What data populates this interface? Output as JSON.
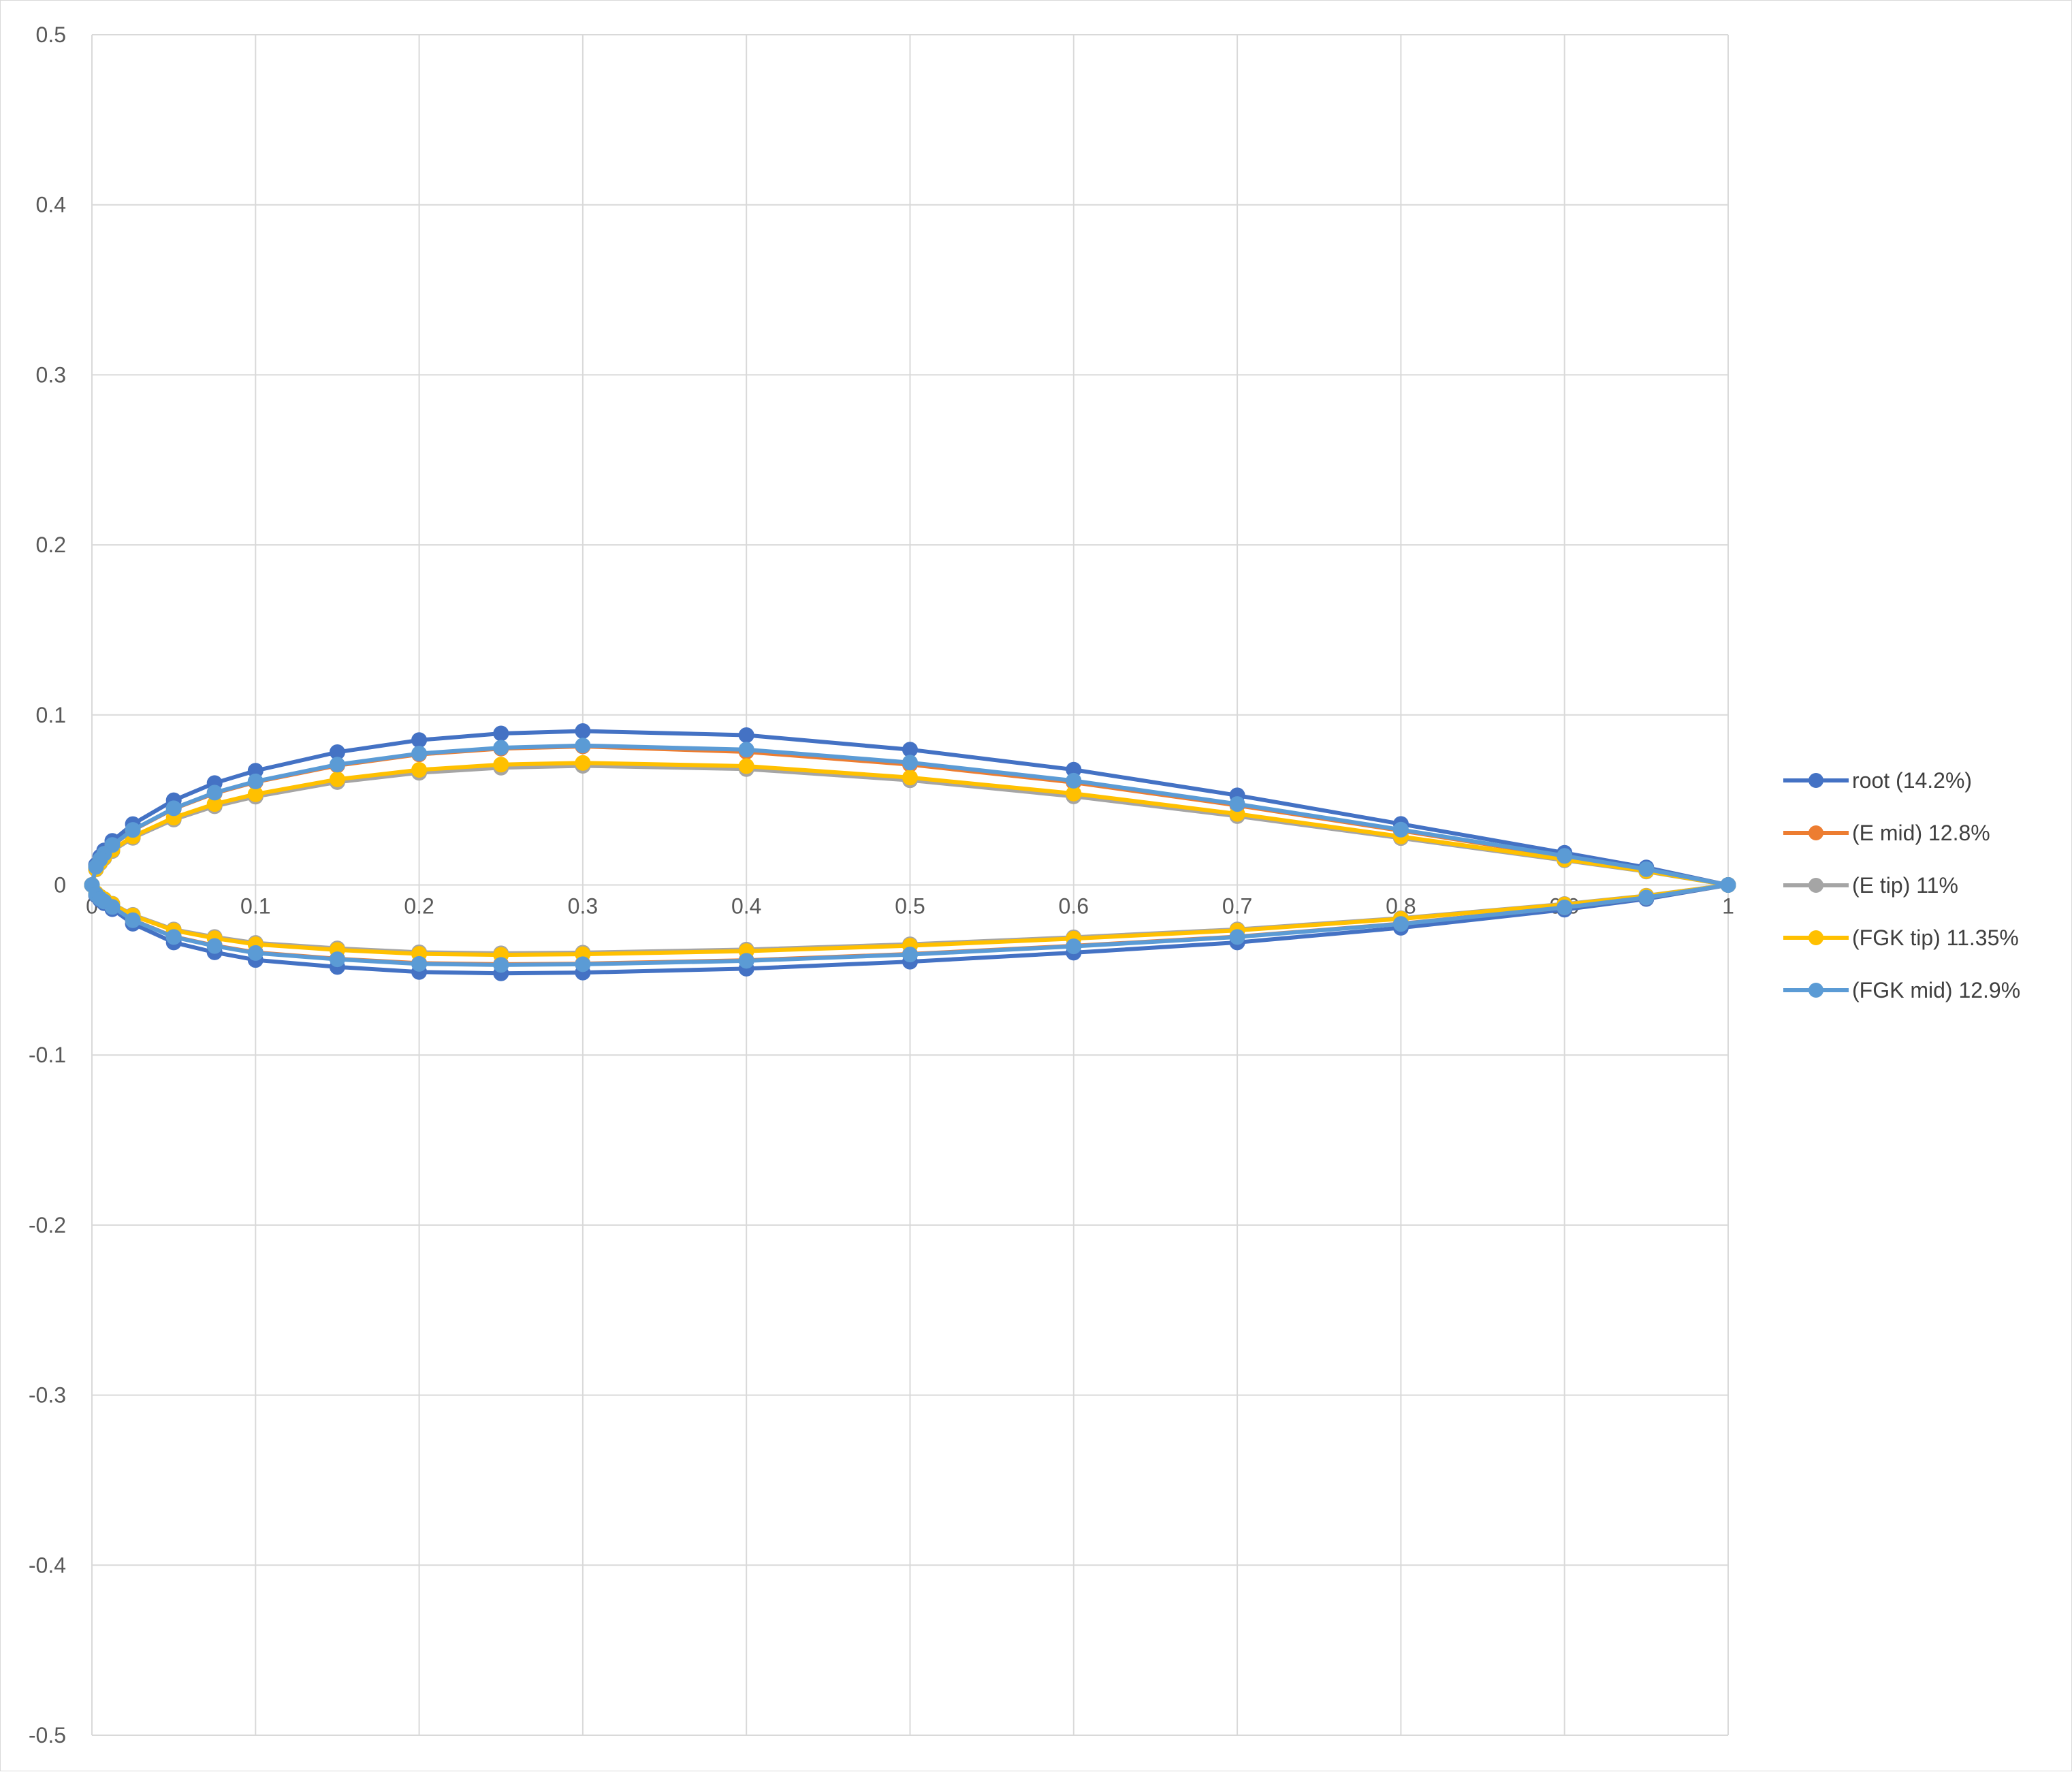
{
  "chart_data": {
    "type": "scatter",
    "title": "",
    "xlabel": "",
    "ylabel": "",
    "xlim": [
      0,
      1
    ],
    "ylim": [
      -0.5,
      0.5
    ],
    "x_ticks": [
      "0",
      "0.1",
      "0.2",
      "0.3",
      "0.4",
      "0.5",
      "0.6",
      "0.7",
      "0.8",
      "0.9",
      "1"
    ],
    "y_ticks": [
      "0.5",
      "0.4",
      "0.3",
      "0.2",
      "0.1",
      "0",
      "-0.1",
      "-0.2",
      "-0.3",
      "-0.4",
      "-0.5"
    ],
    "grid": true,
    "legend_position": "right",
    "series": [
      {
        "name": "root (14.2%)",
        "color": "#4472C4",
        "points": [
          [
            1,
            0
          ],
          [
            0.95,
            0.0103
          ],
          [
            0.9,
            0.0189
          ],
          [
            0.8,
            0.0359
          ],
          [
            0.7,
            0.0527
          ],
          [
            0.6,
            0.0678
          ],
          [
            0.5,
            0.0796
          ],
          [
            0.4,
            0.0881
          ],
          [
            0.3,
            0.0905
          ],
          [
            0.25,
            0.0891
          ],
          [
            0.2,
            0.0852
          ],
          [
            0.15,
            0.0781
          ],
          [
            0.1,
            0.0672
          ],
          [
            0.075,
            0.0599
          ],
          [
            0.05,
            0.0498
          ],
          [
            0.025,
            0.0358
          ],
          [
            0.0125,
            0.0259
          ],
          [
            0.0075,
            0.0203
          ],
          [
            0.005,
            0.0166
          ],
          [
            0.0025,
            0.0118
          ],
          [
            0,
            0
          ],
          [
            0.0025,
            -0.0061
          ],
          [
            0.005,
            -0.0088
          ],
          [
            0.0075,
            -0.0107
          ],
          [
            0.0125,
            -0.0142
          ],
          [
            0.025,
            -0.0228
          ],
          [
            0.05,
            -0.0338
          ],
          [
            0.075,
            -0.0396
          ],
          [
            0.1,
            -0.0441
          ],
          [
            0.15,
            -0.0482
          ],
          [
            0.2,
            -0.0512
          ],
          [
            0.25,
            -0.052
          ],
          [
            0.3,
            -0.0515
          ],
          [
            0.4,
            -0.0492
          ],
          [
            0.5,
            -0.0451
          ],
          [
            0.6,
            -0.0398
          ],
          [
            0.7,
            -0.0338
          ],
          [
            0.8,
            -0.0252
          ],
          [
            0.9,
            -0.0145
          ],
          [
            0.95,
            -0.0082
          ],
          [
            1,
            0
          ]
        ]
      },
      {
        "name": "(E mid) 12.8%",
        "color": "#ED7D31",
        "points": [
          [
            1,
            0
          ],
          [
            0.95,
            0.0092
          ],
          [
            0.9,
            0.0168
          ],
          [
            0.8,
            0.0319
          ],
          [
            0.7,
            0.0468
          ],
          [
            0.6,
            0.0603
          ],
          [
            0.5,
            0.0708
          ],
          [
            0.4,
            0.0783
          ],
          [
            0.3,
            0.0815
          ],
          [
            0.25,
            0.0802
          ],
          [
            0.2,
            0.0768
          ],
          [
            0.15,
            0.0703
          ],
          [
            0.1,
            0.0605
          ],
          [
            0.075,
            0.0539
          ],
          [
            0.05,
            0.0448
          ],
          [
            0.025,
            0.0322
          ],
          [
            0.0125,
            0.0233
          ],
          [
            0.0075,
            0.0183
          ],
          [
            0.005,
            0.0149
          ],
          [
            0.0025,
            0.0106
          ],
          [
            0,
            0
          ],
          [
            0.0025,
            -0.0055
          ],
          [
            0.005,
            -0.0079
          ],
          [
            0.0075,
            -0.0096
          ],
          [
            0.0125,
            -0.0128
          ],
          [
            0.025,
            -0.0206
          ],
          [
            0.05,
            -0.0304
          ],
          [
            0.075,
            -0.0356
          ],
          [
            0.1,
            -0.0397
          ],
          [
            0.15,
            -0.0434
          ],
          [
            0.2,
            -0.046
          ],
          [
            0.25,
            -0.0466
          ],
          [
            0.3,
            -0.0463
          ],
          [
            0.4,
            -0.0443
          ],
          [
            0.5,
            -0.0406
          ],
          [
            0.6,
            -0.0358
          ],
          [
            0.7,
            -0.0304
          ],
          [
            0.8,
            -0.0228
          ],
          [
            0.9,
            -0.0132
          ],
          [
            0.95,
            -0.0074
          ],
          [
            1,
            0
          ]
        ]
      },
      {
        "name": "(E tip) 11%",
        "color": "#A5A5A5",
        "points": [
          [
            1,
            0
          ],
          [
            0.95,
            0.0079
          ],
          [
            0.9,
            0.0145
          ],
          [
            0.8,
            0.0276
          ],
          [
            0.7,
            0.0405
          ],
          [
            0.6,
            0.0521
          ],
          [
            0.5,
            0.0616
          ],
          [
            0.4,
            0.0682
          ],
          [
            0.3,
            0.0701
          ],
          [
            0.25,
            0.069
          ],
          [
            0.2,
            0.066
          ],
          [
            0.15,
            0.0605
          ],
          [
            0.1,
            0.052
          ],
          [
            0.075,
            0.0463
          ],
          [
            0.05,
            0.0385
          ],
          [
            0.025,
            0.0277
          ],
          [
            0.0125,
            0.02
          ],
          [
            0.0075,
            0.0157
          ],
          [
            0.005,
            0.0128
          ],
          [
            0.0025,
            0.0091
          ],
          [
            0,
            0
          ],
          [
            0.0025,
            -0.0047
          ],
          [
            0.005,
            -0.0068
          ],
          [
            0.0075,
            -0.0083
          ],
          [
            0.0125,
            -0.011
          ],
          [
            0.025,
            -0.0176
          ],
          [
            0.05,
            -0.0262
          ],
          [
            0.075,
            -0.0306
          ],
          [
            0.1,
            -0.0341
          ],
          [
            0.15,
            -0.0373
          ],
          [
            0.2,
            -0.0396
          ],
          [
            0.25,
            -0.0402
          ],
          [
            0.3,
            -0.0398
          ],
          [
            0.4,
            -0.038
          ],
          [
            0.5,
            -0.0349
          ],
          [
            0.6,
            -0.0308
          ],
          [
            0.7,
            -0.0261
          ],
          [
            0.8,
            -0.0195
          ],
          [
            0.9,
            -0.0112
          ],
          [
            0.95,
            -0.0063
          ],
          [
            1,
            0
          ]
        ]
      },
      {
        "name": "(FGK tip) 11.35%",
        "color": "#FFC000",
        "points": [
          [
            1,
            0
          ],
          [
            0.95,
            0.0082
          ],
          [
            0.9,
            0.015
          ],
          [
            0.8,
            0.0285
          ],
          [
            0.7,
            0.0418
          ],
          [
            0.6,
            0.0538
          ],
          [
            0.5,
            0.0632
          ],
          [
            0.4,
            0.0699
          ],
          [
            0.3,
            0.0718
          ],
          [
            0.25,
            0.0708
          ],
          [
            0.2,
            0.0677
          ],
          [
            0.15,
            0.0621
          ],
          [
            0.1,
            0.0534
          ],
          [
            0.075,
            0.0476
          ],
          [
            0.05,
            0.0396
          ],
          [
            0.025,
            0.0285
          ],
          [
            0.0125,
            0.0206
          ],
          [
            0.0075,
            0.0162
          ],
          [
            0.005,
            0.0132
          ],
          [
            0.0025,
            0.0094
          ],
          [
            0,
            0
          ],
          [
            0.0025,
            -0.0048
          ],
          [
            0.005,
            -0.0069
          ],
          [
            0.0075,
            -0.0084
          ],
          [
            0.0125,
            -0.0112
          ],
          [
            0.025,
            -0.018
          ],
          [
            0.05,
            -0.0267
          ],
          [
            0.075,
            -0.0313
          ],
          [
            0.1,
            -0.0349
          ],
          [
            0.15,
            -0.0382
          ],
          [
            0.2,
            -0.0405
          ],
          [
            0.25,
            -0.0411
          ],
          [
            0.3,
            -0.0407
          ],
          [
            0.4,
            -0.0389
          ],
          [
            0.5,
            -0.0357
          ],
          [
            0.6,
            -0.0315
          ],
          [
            0.7,
            -0.0267
          ],
          [
            0.8,
            -0.0199
          ],
          [
            0.9,
            -0.0115
          ],
          [
            0.95,
            -0.0065
          ],
          [
            1,
            0
          ]
        ]
      },
      {
        "name": "(FGK mid) 12.9%",
        "color": "#5B9BD5",
        "points": [
          [
            1,
            0
          ],
          [
            0.95,
            0.0093
          ],
          [
            0.9,
            0.0171
          ],
          [
            0.8,
            0.0325
          ],
          [
            0.7,
            0.0476
          ],
          [
            0.6,
            0.0613
          ],
          [
            0.5,
            0.072
          ],
          [
            0.4,
            0.0796
          ],
          [
            0.3,
            0.082
          ],
          [
            0.25,
            0.0807
          ],
          [
            0.2,
            0.0773
          ],
          [
            0.15,
            0.0708
          ],
          [
            0.1,
            0.0609
          ],
          [
            0.075,
            0.0543
          ],
          [
            0.05,
            0.0451
          ],
          [
            0.025,
            0.0324
          ],
          [
            0.0125,
            0.0235
          ],
          [
            0.0075,
            0.0184
          ],
          [
            0.005,
            0.015
          ],
          [
            0.0025,
            0.0107
          ],
          [
            0,
            0
          ],
          [
            0.0025,
            -0.0055
          ],
          [
            0.005,
            -0.008
          ],
          [
            0.0075,
            -0.0097
          ],
          [
            0.0125,
            -0.0129
          ],
          [
            0.025,
            -0.0207
          ],
          [
            0.05,
            -0.0306
          ],
          [
            0.075,
            -0.0359
          ],
          [
            0.1,
            -0.04
          ],
          [
            0.15,
            -0.0437
          ],
          [
            0.2,
            -0.0464
          ],
          [
            0.25,
            -0.047
          ],
          [
            0.3,
            -0.0466
          ],
          [
            0.4,
            -0.0446
          ],
          [
            0.5,
            -0.0409
          ],
          [
            0.6,
            -0.0361
          ],
          [
            0.7,
            -0.0306
          ],
          [
            0.8,
            -0.0229
          ],
          [
            0.9,
            -0.0132
          ],
          [
            0.95,
            -0.0074
          ],
          [
            1,
            0
          ]
        ]
      }
    ]
  }
}
